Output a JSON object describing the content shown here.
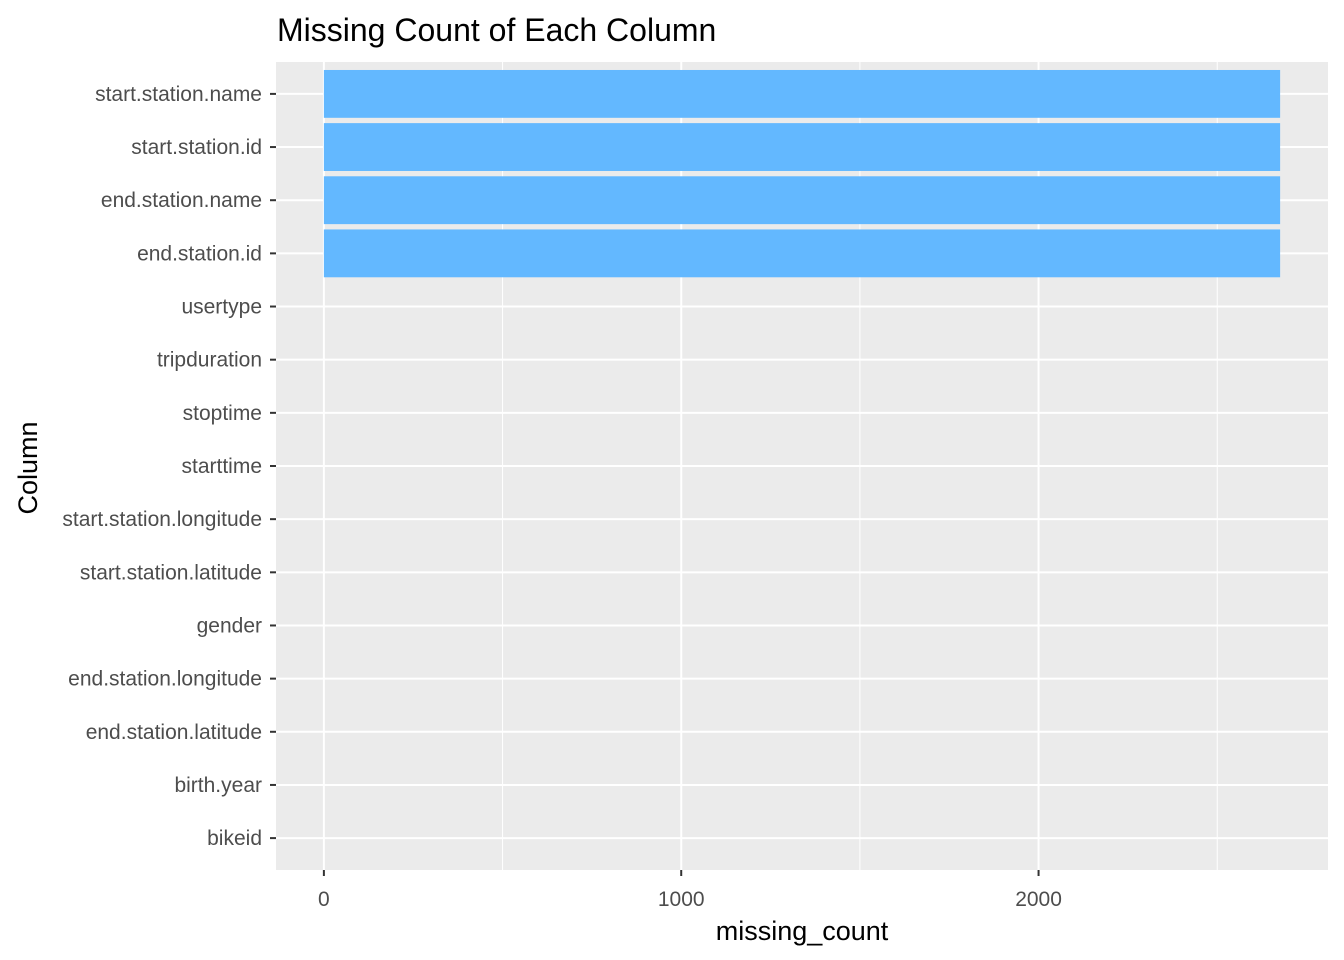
{
  "chart_data": {
    "type": "bar",
    "orientation": "horizontal",
    "title": "Missing Count of Each Column",
    "xlabel": "missing_count",
    "ylabel": "Column",
    "categories": [
      "start.station.name",
      "start.station.id",
      "end.station.name",
      "end.station.id",
      "usertype",
      "tripduration",
      "stoptime",
      "starttime",
      "start.station.longitude",
      "start.station.latitude",
      "gender",
      "end.station.longitude",
      "end.station.latitude",
      "birth.year",
      "bikeid"
    ],
    "values": [
      2676,
      2676,
      2676,
      2676,
      0,
      0,
      0,
      0,
      0,
      0,
      0,
      0,
      0,
      0,
      0
    ],
    "xlim": [
      -134,
      2810
    ],
    "xticks": [
      0,
      1000,
      2000
    ],
    "xtick_labels": [
      "0",
      "1000",
      "2000"
    ],
    "grid": true,
    "legend": "none",
    "colors": {
      "bar": "#63b8ff",
      "panel": "#ebebeb",
      "grid": "#ffffff"
    }
  }
}
